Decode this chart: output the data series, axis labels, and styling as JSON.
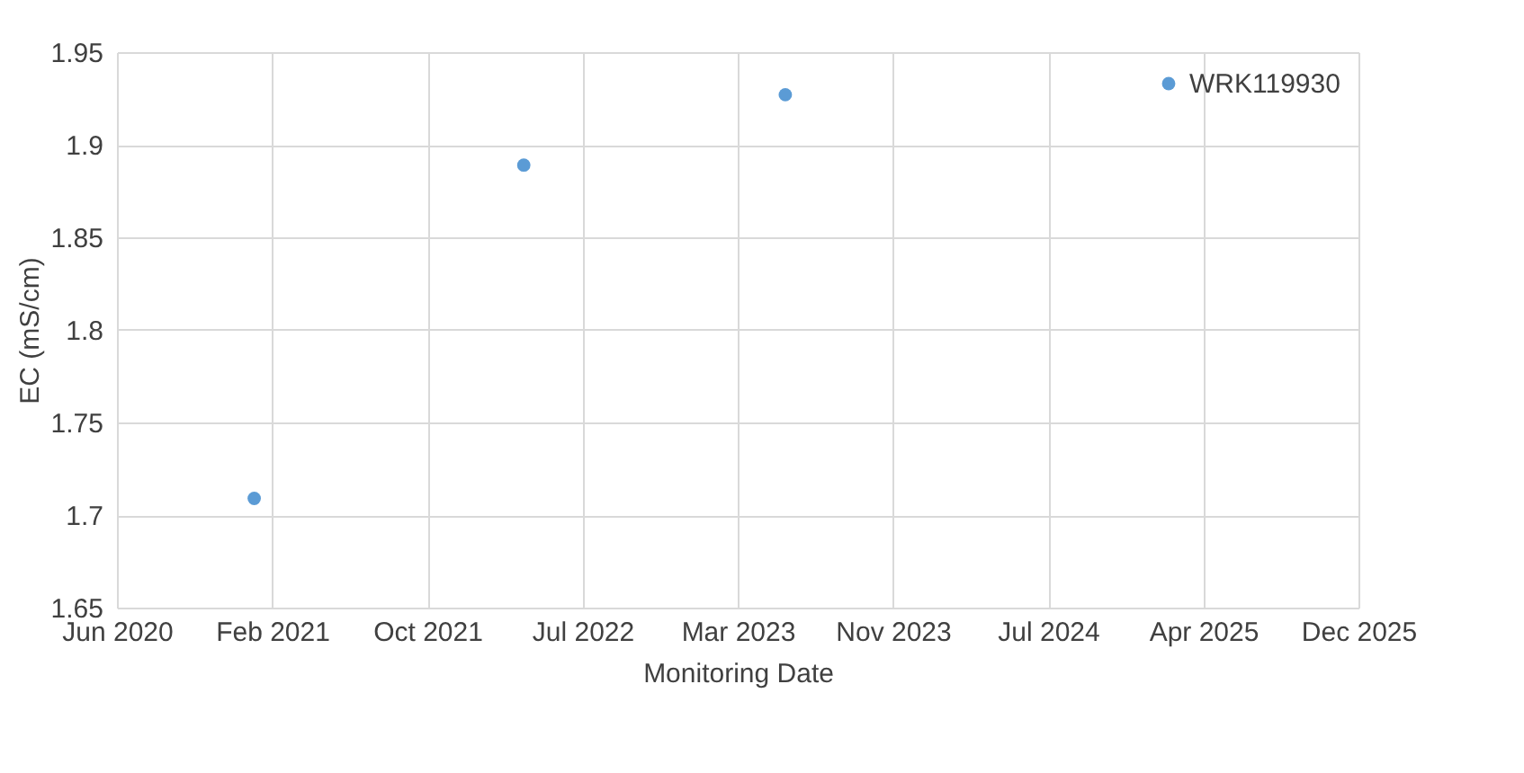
{
  "chart_data": {
    "type": "scatter",
    "xlabel": "Monitoring Date",
    "ylabel": "EC (mS/cm)",
    "series": [
      {
        "name": "WRK119930",
        "color": "#5b9bd5",
        "x": [
          "2021-01-23",
          "2022-04-04",
          "2023-06-01"
        ],
        "values": [
          1.709,
          1.889,
          1.927
        ]
      }
    ],
    "xlim": [
      "2020-06-15",
      "2025-12-14"
    ],
    "xticks": [
      {
        "value": "2020-06-15",
        "label": "Jun 2020"
      },
      {
        "value": "2021-02-21",
        "label": "Feb 2021"
      },
      {
        "value": "2021-10-30",
        "label": "Oct 2021"
      },
      {
        "value": "2022-07-08",
        "label": "Jul 2022"
      },
      {
        "value": "2023-03-16",
        "label": "Mar 2023"
      },
      {
        "value": "2023-11-22",
        "label": "Nov 2023"
      },
      {
        "value": "2024-07-30",
        "label": "Jul 2024"
      },
      {
        "value": "2025-04-07",
        "label": "Apr 2025"
      },
      {
        "value": "2025-12-14",
        "label": "Dec 2025"
      }
    ],
    "ylim": [
      1.65,
      1.95
    ],
    "yticks": [
      1.65,
      1.7,
      1.75,
      1.8,
      1.85,
      1.9,
      1.95
    ],
    "grid": true,
    "legend": "top right",
    "marker": "circle"
  }
}
